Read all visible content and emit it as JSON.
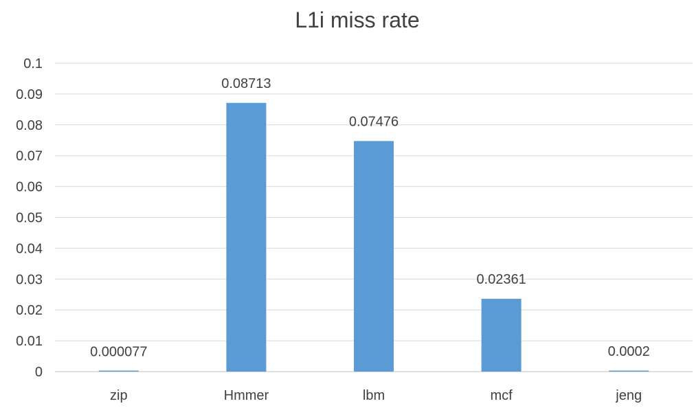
{
  "chart_data": {
    "type": "bar",
    "title": "L1i miss rate",
    "categories": [
      "zip",
      "Hmmer",
      "lbm",
      "mcf",
      "jeng"
    ],
    "values": [
      7.7e-05,
      0.08713,
      0.07476,
      0.02361,
      0.0002
    ],
    "data_labels": [
      "0.000077",
      "0.08713",
      "0.07476",
      "0.02361",
      "0.0002"
    ],
    "yticks": [
      "0",
      "0.01",
      "0.02",
      "0.03",
      "0.04",
      "0.05",
      "0.06",
      "0.07",
      "0.08",
      "0.09",
      "0.1"
    ],
    "ylim": [
      0,
      0.1
    ],
    "xlabel": "",
    "ylabel": "",
    "grid": true,
    "legend": "none",
    "bar_color": "#5b9bd5"
  }
}
